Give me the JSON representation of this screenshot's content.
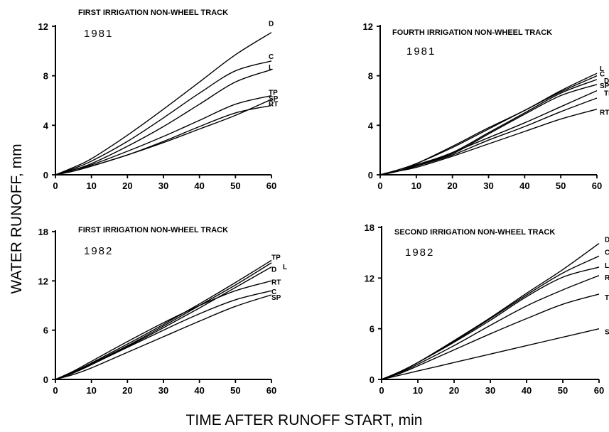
{
  "figure": {
    "ylabel": "WATER RUNOFF, mm",
    "xlabel": "TIME AFTER RUNOFF START, min"
  },
  "chart_data": [
    {
      "type": "line",
      "title": "FIRST IRRIGATION NON-WHEEL TRACK",
      "year": "1981",
      "xlim": [
        0,
        60
      ],
      "ylim": [
        0,
        12
      ],
      "xticks": [
        0,
        10,
        20,
        30,
        40,
        50,
        60
      ],
      "yticks": [
        0,
        4,
        8,
        12
      ],
      "series": [
        {
          "name": "D",
          "x": [
            0,
            5,
            10,
            20,
            30,
            40,
            50,
            60
          ],
          "y": [
            0,
            0.6,
            1.3,
            3.2,
            5.3,
            7.5,
            9.7,
            11.5
          ]
        },
        {
          "name": "C",
          "x": [
            0,
            5,
            10,
            20,
            30,
            40,
            50,
            60
          ],
          "y": [
            0,
            0.5,
            1.1,
            2.7,
            4.6,
            6.6,
            8.4,
            9.2
          ]
        },
        {
          "name": "L",
          "x": [
            0,
            5,
            10,
            20,
            30,
            40,
            50,
            60
          ],
          "y": [
            0,
            0.4,
            0.9,
            2.3,
            3.9,
            5.7,
            7.5,
            8.5
          ]
        },
        {
          "name": "TP",
          "x": [
            0,
            5,
            10,
            20,
            30,
            40,
            50,
            60
          ],
          "y": [
            0,
            0.4,
            0.8,
            1.9,
            3.1,
            4.4,
            5.7,
            6.4
          ]
        },
        {
          "name": "SP",
          "x": [
            0,
            5,
            10,
            20,
            30,
            40,
            50,
            60
          ],
          "y": [
            0,
            0.3,
            0.7,
            1.6,
            2.6,
            3.7,
            4.8,
            6.1
          ]
        },
        {
          "name": "RT",
          "x": [
            0,
            5,
            10,
            20,
            30,
            40,
            50,
            60
          ],
          "y": [
            0,
            0.3,
            0.7,
            1.6,
            2.7,
            3.9,
            5.0,
            5.6
          ]
        }
      ]
    },
    {
      "type": "line",
      "title": "FOURTH IRRIGATION NON-WHEEL TRACK",
      "year": "1981",
      "xlim": [
        0,
        60
      ],
      "ylim": [
        0,
        12
      ],
      "xticks": [
        0,
        10,
        20,
        30,
        40,
        50,
        60
      ],
      "yticks": [
        0,
        4,
        8,
        12
      ],
      "series": [
        {
          "name": "L",
          "x": [
            0,
            5,
            10,
            20,
            30,
            40,
            50,
            60
          ],
          "y": [
            0,
            0.4,
            0.9,
            2.3,
            3.8,
            5.2,
            6.8,
            8.2
          ]
        },
        {
          "name": "C",
          "x": [
            0,
            5,
            10,
            20,
            30,
            40,
            50,
            60
          ],
          "y": [
            0,
            0.4,
            0.9,
            2.2,
            3.7,
            5.2,
            6.7,
            8.0
          ]
        },
        {
          "name": "D",
          "x": [
            0,
            5,
            10,
            20,
            30,
            40,
            50,
            60
          ],
          "y": [
            0,
            0.3,
            0.8,
            1.8,
            3.4,
            5.0,
            6.6,
            7.7
          ]
        },
        {
          "name": "SP",
          "x": [
            0,
            5,
            10,
            20,
            30,
            40,
            50,
            60
          ],
          "y": [
            0,
            0.3,
            0.8,
            1.7,
            3.3,
            4.9,
            6.4,
            7.3
          ]
        },
        {
          "name": "TI",
          "x": [
            0,
            5,
            10,
            20,
            30,
            40,
            50,
            60
          ],
          "y": [
            0,
            0.3,
            0.7,
            1.8,
            3.0,
            4.2,
            5.5,
            6.8
          ]
        },
        {
          "name": "RT",
          "x": [
            0,
            5,
            10,
            20,
            30,
            40,
            50,
            60
          ],
          "y": [
            0,
            0.3,
            0.6,
            1.5,
            2.5,
            3.5,
            4.5,
            5.3
          ]
        },
        {
          "name": "",
          "x": [
            0,
            5,
            10,
            20,
            30,
            40,
            50,
            60
          ],
          "y": [
            0,
            0.3,
            0.7,
            1.6,
            2.8,
            3.9,
            5.1,
            6.2
          ]
        }
      ]
    },
    {
      "type": "line",
      "title": "FIRST IRRIGATION NON-WHEEL TRACK",
      "year": "1982",
      "xlim": [
        0,
        60
      ],
      "ylim": [
        0,
        18
      ],
      "xticks": [
        0,
        10,
        20,
        30,
        40,
        50,
        60
      ],
      "yticks": [
        0,
        6,
        12,
        18
      ],
      "series": [
        {
          "name": "TP",
          "x": [
            0,
            5,
            10,
            20,
            30,
            40,
            50,
            60
          ],
          "y": [
            0,
            0.9,
            2.0,
            4.3,
            6.7,
            9.2,
            11.8,
            14.5
          ]
        },
        {
          "name": "L",
          "x": [
            0,
            5,
            10,
            20,
            30,
            40,
            50,
            60
          ],
          "y": [
            0,
            0.8,
            1.9,
            4.1,
            6.5,
            9.0,
            11.5,
            14.2
          ]
        },
        {
          "name": "D",
          "x": [
            0,
            5,
            10,
            20,
            30,
            40,
            50,
            60
          ],
          "y": [
            0,
            0.8,
            1.8,
            4.0,
            6.3,
            8.7,
            11.2,
            13.7
          ]
        },
        {
          "name": "RT",
          "x": [
            0,
            5,
            10,
            20,
            30,
            40,
            50,
            60
          ],
          "y": [
            0,
            1.0,
            2.2,
            4.6,
            6.9,
            9.0,
            10.8,
            12.0
          ]
        },
        {
          "name": "C",
          "x": [
            0,
            5,
            10,
            20,
            30,
            40,
            50,
            60
          ],
          "y": [
            0,
            0.8,
            1.8,
            3.9,
            6.0,
            8.0,
            9.7,
            10.8
          ]
        },
        {
          "name": "SP",
          "x": [
            0,
            5,
            10,
            20,
            30,
            40,
            50,
            60
          ],
          "y": [
            0,
            0.6,
            1.4,
            3.3,
            5.2,
            7.1,
            8.9,
            10.3
          ]
        }
      ]
    },
    {
      "type": "line",
      "title": "SECOND IRRIGATION NON-WHEEL TRACK",
      "year": "1982",
      "xlim": [
        0,
        60
      ],
      "ylim": [
        0,
        18
      ],
      "xticks": [
        0,
        10,
        20,
        30,
        40,
        50,
        60
      ],
      "yticks": [
        0,
        6,
        12,
        18
      ],
      "series": [
        {
          "name": "D",
          "x": [
            0,
            5,
            10,
            20,
            30,
            40,
            50,
            60
          ],
          "y": [
            0,
            0.9,
            2.0,
            4.6,
            7.3,
            10.2,
            13.0,
            16.1
          ]
        },
        {
          "name": "C",
          "x": [
            0,
            5,
            10,
            20,
            30,
            40,
            50,
            60
          ],
          "y": [
            0,
            0.9,
            2.0,
            4.5,
            7.2,
            10.0,
            12.6,
            14.6
          ]
        },
        {
          "name": "L",
          "x": [
            0,
            5,
            10,
            20,
            30,
            40,
            50,
            60
          ],
          "y": [
            0,
            0.9,
            2.0,
            4.4,
            7.0,
            9.8,
            12.1,
            13.3
          ]
        },
        {
          "name": "RT",
          "x": [
            0,
            5,
            10,
            20,
            30,
            40,
            50,
            60
          ],
          "y": [
            0,
            0.8,
            1.8,
            4.0,
            6.4,
            8.7,
            10.6,
            12.3
          ]
        },
        {
          "name": "TP",
          "x": [
            0,
            5,
            10,
            20,
            30,
            40,
            50,
            60
          ],
          "y": [
            0,
            0.7,
            1.6,
            3.5,
            5.4,
            7.2,
            8.9,
            10.1
          ]
        },
        {
          "name": "SP",
          "x": [
            0,
            5,
            10,
            20,
            30,
            40,
            50,
            60
          ],
          "y": [
            0,
            0.5,
            1.0,
            2.0,
            3.0,
            4.0,
            5.0,
            6.0
          ]
        }
      ]
    }
  ]
}
